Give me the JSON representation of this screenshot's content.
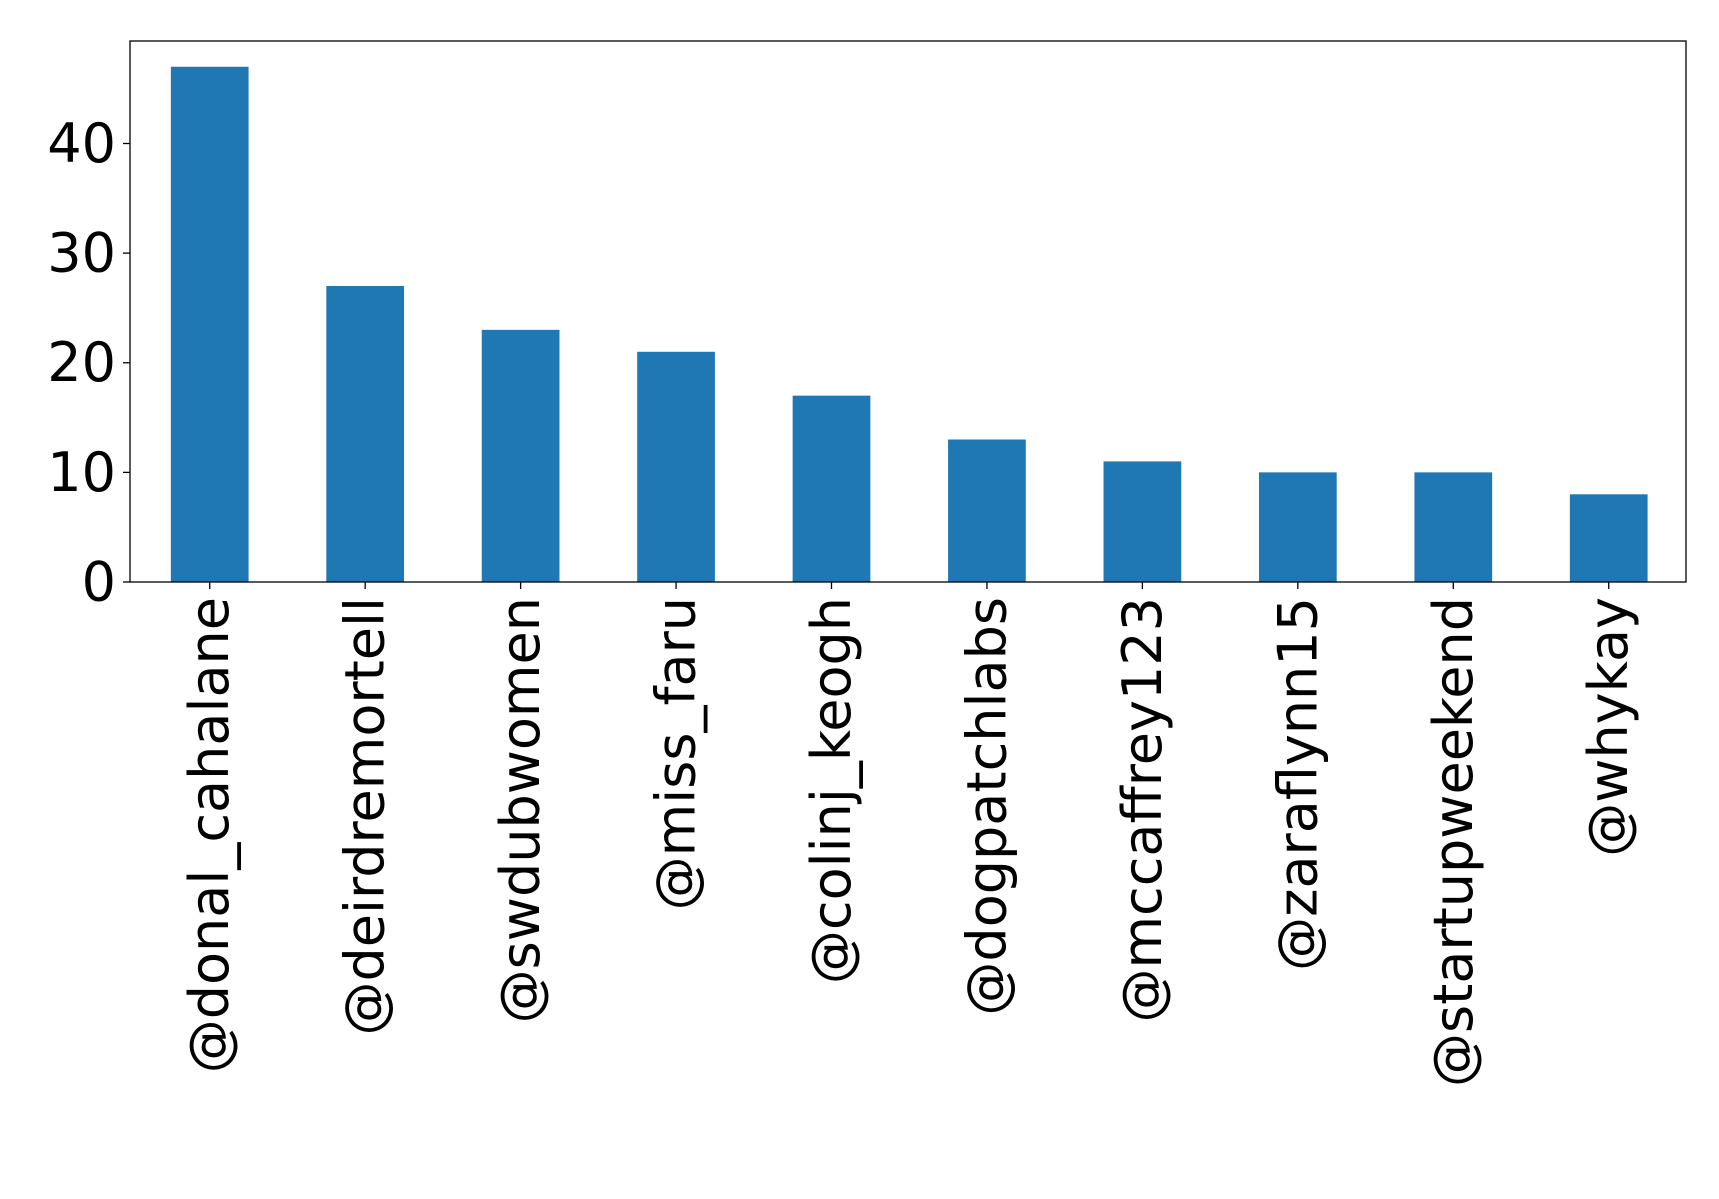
{
  "chart_data": {
    "type": "bar",
    "title": "",
    "xlabel": "",
    "ylabel": "",
    "categories": [
      "@donal_cahalane",
      "@deirdremortell",
      "@swdubwomen",
      "@miss_faru",
      "@colinj_keogh",
      "@dogpatchlabs",
      "@mccaffrey123",
      "@zaraflynn15",
      "@startupweekend",
      "@whykay"
    ],
    "values": [
      47,
      27,
      23,
      21,
      17,
      13,
      11,
      10,
      10,
      8
    ],
    "ylim": [
      0,
      49.35
    ],
    "yticks": [
      0,
      10,
      20,
      30,
      40
    ],
    "grid": false,
    "legend": "none",
    "bar_color": "#1f77b4"
  }
}
